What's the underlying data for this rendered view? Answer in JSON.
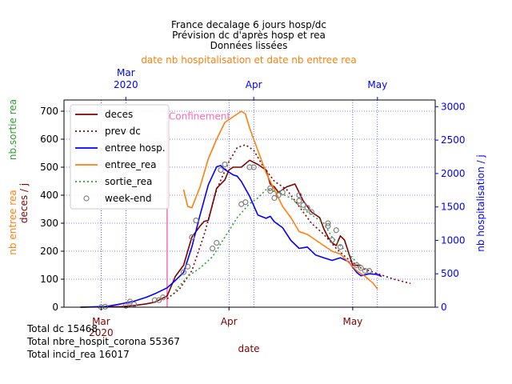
{
  "chart_data": {
    "type": "line",
    "title_lines": [
      "France decalage 6 jours hosp/dc",
      "Prévision dc d'après hosp et rea",
      "Données lissées"
    ],
    "top_axis_label": "date nb hospitalisation et date nb entree rea",
    "top_ticks": [
      {
        "date": "2020-03-01",
        "label": "Mar",
        "label2": "2020"
      },
      {
        "date": "2020-04-01",
        "label": "Apr",
        "label2": ""
      },
      {
        "date": "2020-05-01",
        "label": "May",
        "label2": ""
      }
    ],
    "bottom_ticks": [
      {
        "date": "2020-03-01",
        "label": "Mar",
        "label2": "2020"
      },
      {
        "date": "2020-04-01",
        "label": "Apr",
        "label2": ""
      },
      {
        "date": "2020-05-01",
        "label": "May",
        "label2": ""
      }
    ],
    "xlabel": "date",
    "xlim": [
      "2020-02-21",
      "2020-05-21"
    ],
    "top_xlim": [
      "2020-02-15",
      "2020-05-15"
    ],
    "left_axis": {
      "ylim": [
        0,
        740
      ],
      "ticks": [
        0,
        100,
        200,
        300,
        400,
        500,
        600,
        700
      ],
      "label_deces": "deces / j",
      "label_entree": "nb entree rea",
      "label_sortie": "nb.sortie rea"
    },
    "right_axis": {
      "ylim": [
        0,
        3100
      ],
      "ticks": [
        0,
        500,
        1000,
        1500,
        2000,
        2500,
        3000
      ],
      "label": "nb hospitalisation / j"
    },
    "grid": true,
    "legend_position": "upper-left",
    "annotation": {
      "text": "Confinement",
      "date": "2020-03-17"
    },
    "series": [
      {
        "key": "deces",
        "name": "deces",
        "color": "#800000",
        "style": "solid",
        "axis": "left",
        "points": [
          [
            "2020-02-25",
            0
          ],
          [
            "2020-03-01",
            1
          ],
          [
            "2020-03-06",
            2
          ],
          [
            "2020-03-09",
            6
          ],
          [
            "2020-03-12",
            12
          ],
          [
            "2020-03-14",
            18
          ],
          [
            "2020-03-17",
            40
          ],
          [
            "2020-03-19",
            110
          ],
          [
            "2020-03-21",
            150
          ],
          [
            "2020-03-23",
            250
          ],
          [
            "2020-03-25",
            290
          ],
          [
            "2020-03-26",
            307
          ],
          [
            "2020-03-27",
            310
          ],
          [
            "2020-03-29",
            425
          ],
          [
            "2020-03-31",
            455
          ],
          [
            "2020-04-01",
            490
          ],
          [
            "2020-04-02",
            500
          ],
          [
            "2020-04-04",
            500
          ],
          [
            "2020-04-06",
            525
          ],
          [
            "2020-04-08",
            510
          ],
          [
            "2020-04-10",
            490
          ],
          [
            "2020-04-11",
            440
          ],
          [
            "2020-04-12",
            430
          ],
          [
            "2020-04-13",
            410
          ],
          [
            "2020-04-15",
            430
          ],
          [
            "2020-04-17",
            440
          ],
          [
            "2020-04-19",
            380
          ],
          [
            "2020-04-21",
            340
          ],
          [
            "2020-04-23",
            320
          ],
          [
            "2020-04-24",
            280
          ],
          [
            "2020-04-25",
            250
          ],
          [
            "2020-04-26",
            230
          ],
          [
            "2020-04-27",
            220
          ],
          [
            "2020-04-28",
            255
          ],
          [
            "2020-04-29",
            240
          ],
          [
            "2020-05-01",
            150
          ],
          [
            "2020-05-03",
            150
          ]
        ]
      },
      {
        "key": "prev_dc",
        "name": "prev dc",
        "color": "#800000",
        "style": "dotted",
        "axis": "left",
        "points": [
          [
            "2020-03-17",
            30
          ],
          [
            "2020-03-20",
            65
          ],
          [
            "2020-03-23",
            130
          ],
          [
            "2020-03-26",
            260
          ],
          [
            "2020-03-29",
            420
          ],
          [
            "2020-04-01",
            520
          ],
          [
            "2020-04-03",
            570
          ],
          [
            "2020-04-05",
            580
          ],
          [
            "2020-04-07",
            560
          ],
          [
            "2020-04-09",
            510
          ],
          [
            "2020-04-12",
            450
          ],
          [
            "2020-04-15",
            420
          ],
          [
            "2020-04-18",
            360
          ],
          [
            "2020-04-21",
            300
          ],
          [
            "2020-04-24",
            260
          ],
          [
            "2020-04-27",
            210
          ],
          [
            "2020-04-30",
            170
          ],
          [
            "2020-05-03",
            140
          ],
          [
            "2020-05-07",
            120
          ],
          [
            "2020-05-11",
            100
          ],
          [
            "2020-05-15",
            85
          ]
        ]
      },
      {
        "key": "entree_hosp",
        "name": "entree hosp.",
        "color": "#0000ff",
        "style": "solid",
        "axis": "right",
        "points": [
          [
            "2020-02-25",
            0
          ],
          [
            "2020-03-02",
            10
          ],
          [
            "2020-03-05",
            40
          ],
          [
            "2020-03-09",
            90
          ],
          [
            "2020-03-12",
            150
          ],
          [
            "2020-03-14",
            200
          ],
          [
            "2020-03-17",
            290
          ],
          [
            "2020-03-19",
            400
          ],
          [
            "2020-03-21",
            520
          ],
          [
            "2020-03-23",
            900
          ],
          [
            "2020-03-25",
            1380
          ],
          [
            "2020-03-27",
            1830
          ],
          [
            "2020-03-29",
            2100
          ],
          [
            "2020-03-30",
            2120
          ],
          [
            "2020-03-31",
            2060
          ],
          [
            "2020-04-02",
            1980
          ],
          [
            "2020-04-03",
            1960
          ],
          [
            "2020-04-04",
            1880
          ],
          [
            "2020-04-06",
            1660
          ],
          [
            "2020-04-08",
            1380
          ],
          [
            "2020-04-10",
            1330
          ],
          [
            "2020-04-11",
            1360
          ],
          [
            "2020-04-12",
            1280
          ],
          [
            "2020-04-14",
            1190
          ],
          [
            "2020-04-16",
            1000
          ],
          [
            "2020-04-18",
            880
          ],
          [
            "2020-04-20",
            900
          ],
          [
            "2020-04-22",
            780
          ],
          [
            "2020-04-24",
            740
          ],
          [
            "2020-04-26",
            700
          ],
          [
            "2020-04-28",
            740
          ],
          [
            "2020-04-30",
            680
          ],
          [
            "2020-05-02",
            520
          ],
          [
            "2020-05-03",
            470
          ],
          [
            "2020-05-05",
            500
          ],
          [
            "2020-05-07",
            490
          ],
          [
            "2020-05-08",
            460
          ]
        ]
      },
      {
        "key": "entree_rea",
        "name": "entree_rea",
        "color": "#ff7f0e",
        "style": "solid",
        "axis": "left",
        "points": [
          [
            "2020-03-21",
            420
          ],
          [
            "2020-03-22",
            360
          ],
          [
            "2020-03-23",
            355
          ],
          [
            "2020-03-25",
            430
          ],
          [
            "2020-03-27",
            530
          ],
          [
            "2020-03-29",
            600
          ],
          [
            "2020-03-31",
            660
          ],
          [
            "2020-04-02",
            680
          ],
          [
            "2020-04-04",
            700
          ],
          [
            "2020-04-05",
            690
          ],
          [
            "2020-04-06",
            640
          ],
          [
            "2020-04-08",
            560
          ],
          [
            "2020-04-10",
            480
          ],
          [
            "2020-04-12",
            420
          ],
          [
            "2020-04-14",
            360
          ],
          [
            "2020-04-16",
            320
          ],
          [
            "2020-04-18",
            270
          ],
          [
            "2020-04-20",
            260
          ],
          [
            "2020-04-22",
            240
          ],
          [
            "2020-04-24",
            220
          ],
          [
            "2020-04-26",
            200
          ],
          [
            "2020-04-28",
            190
          ],
          [
            "2020-04-30",
            160
          ],
          [
            "2020-05-02",
            130
          ],
          [
            "2020-05-04",
            110
          ],
          [
            "2020-05-06",
            85
          ],
          [
            "2020-05-07",
            65
          ]
        ]
      },
      {
        "key": "sortie_rea",
        "name": "sortie_rea",
        "color": "#2ca02c",
        "style": "dotted",
        "axis": "left",
        "points": [
          [
            "2020-03-19",
            60
          ],
          [
            "2020-03-22",
            110
          ],
          [
            "2020-03-25",
            140
          ],
          [
            "2020-03-28",
            180
          ],
          [
            "2020-03-31",
            250
          ],
          [
            "2020-04-03",
            320
          ],
          [
            "2020-04-06",
            370
          ],
          [
            "2020-04-08",
            390
          ],
          [
            "2020-04-10",
            420
          ],
          [
            "2020-04-13",
            410
          ],
          [
            "2020-04-16",
            390
          ],
          [
            "2020-04-19",
            350
          ],
          [
            "2020-04-22",
            320
          ],
          [
            "2020-04-24",
            300
          ],
          [
            "2020-04-26",
            250
          ],
          [
            "2020-04-28",
            220
          ],
          [
            "2020-04-30",
            190
          ],
          [
            "2020-05-02",
            160
          ]
        ]
      },
      {
        "key": "week_end",
        "name": "week-end",
        "color": "#808080",
        "style": "marker",
        "axis": "left",
        "points": [
          [
            "2020-03-01",
            0
          ],
          [
            "2020-03-07",
            5
          ],
          [
            "2020-03-08",
            20
          ],
          [
            "2020-03-14",
            25
          ],
          [
            "2020-03-15",
            25
          ],
          [
            "2020-03-21",
            125
          ],
          [
            "2020-03-22",
            145
          ],
          [
            "2020-03-28",
            210
          ],
          [
            "2020-03-29",
            230
          ],
          [
            "2020-04-04",
            368
          ],
          [
            "2020-04-05",
            375
          ],
          [
            "2020-04-11",
            425
          ],
          [
            "2020-04-12",
            390
          ],
          [
            "2020-04-18",
            380
          ],
          [
            "2020-04-19",
            365
          ],
          [
            "2020-04-25",
            300
          ],
          [
            "2020-04-26",
            240
          ],
          [
            "2020-05-02",
            150
          ],
          [
            "2020-05-03",
            140
          ],
          [
            "2020-03-23",
            250
          ],
          [
            "2020-03-24",
            310
          ],
          [
            "2020-03-30",
            490
          ],
          [
            "2020-03-31",
            510
          ],
          [
            "2020-04-06",
            500
          ],
          [
            "2020-04-07",
            500
          ],
          [
            "2020-04-13",
            400
          ],
          [
            "2020-04-14",
            410
          ],
          [
            "2020-04-20",
            355
          ],
          [
            "2020-04-21",
            340
          ],
          [
            "2020-04-27",
            275
          ],
          [
            "2020-04-28",
            215
          ],
          [
            "2020-05-04",
            130
          ],
          [
            "2020-05-05",
            130
          ],
          [
            "2020-03-02",
            2
          ],
          [
            "2020-03-16",
            35
          ],
          [
            "2020-03-09",
            10
          ],
          [
            "2020-04-11",
            415
          ],
          [
            "2020-04-18",
            400
          ],
          [
            "2020-04-25",
            290
          ]
        ]
      }
    ]
  },
  "totals": [
    "Total dc 15468",
    "Total nbre_hospit_corona 55367",
    "Total incid_rea 16017"
  ],
  "colors": {
    "dark_red": "#800000",
    "orange": "#ff7f0e",
    "green": "#2ca02c",
    "blue": "#0000ff",
    "pink": "#ff69b4"
  }
}
